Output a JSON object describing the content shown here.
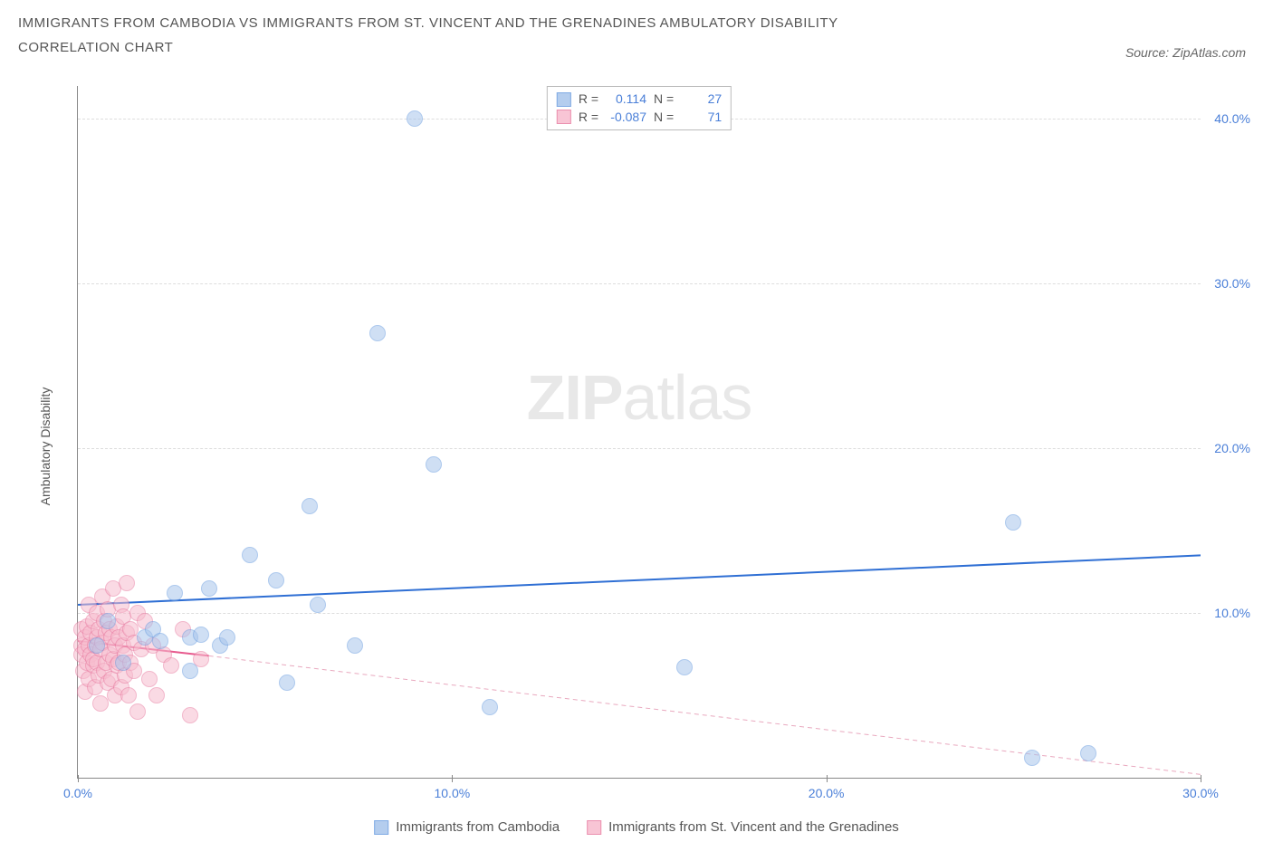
{
  "title_line1": "IMMIGRANTS FROM CAMBODIA VS IMMIGRANTS FROM ST. VINCENT AND THE GRENADINES AMBULATORY DISABILITY",
  "title_line2": "CORRELATION CHART",
  "source_prefix": "Source: ",
  "source_name": "ZipAtlas.com",
  "y_axis_label": "Ambulatory Disability",
  "watermark_bold": "ZIP",
  "watermark_light": "atlas",
  "chart": {
    "type": "scatter",
    "xlim": [
      0,
      30
    ],
    "ylim": [
      0,
      42
    ],
    "x_ticks": [
      0.0,
      10.0,
      20.0,
      30.0
    ],
    "x_tick_labels": [
      "0.0%",
      "10.0%",
      "20.0%",
      "30.0%"
    ],
    "y_ticks": [
      10.0,
      20.0,
      30.0,
      40.0
    ],
    "y_tick_labels": [
      "10.0%",
      "20.0%",
      "30.0%",
      "40.0%"
    ],
    "background_color": "#ffffff",
    "grid_color": "#dddddd",
    "axis_color": "#888888",
    "tick_label_color": "#4a7fd8",
    "series": [
      {
        "name": "Immigrants from Cambodia",
        "short_label": "cambodia",
        "fill_color": "#a8c5ec",
        "stroke_color": "#6b9de0",
        "fill_opacity": 0.55,
        "marker_radius": 9,
        "r_value": "0.114",
        "n_value": "27",
        "trend": {
          "x1": 0,
          "y1": 10.5,
          "x2": 30,
          "y2": 13.5,
          "color": "#2f6fd4",
          "width": 2,
          "dash": "none"
        },
        "trend_ext": null,
        "points": [
          [
            0.5,
            8.0
          ],
          [
            0.8,
            9.5
          ],
          [
            1.2,
            7.0
          ],
          [
            1.8,
            8.5
          ],
          [
            2.0,
            9.0
          ],
          [
            2.2,
            8.3
          ],
          [
            2.6,
            11.2
          ],
          [
            3.0,
            8.5
          ],
          [
            3.0,
            6.5
          ],
          [
            3.3,
            8.7
          ],
          [
            3.5,
            11.5
          ],
          [
            3.8,
            8.0
          ],
          [
            4.0,
            8.5
          ],
          [
            4.6,
            13.5
          ],
          [
            5.3,
            12.0
          ],
          [
            5.6,
            5.8
          ],
          [
            6.2,
            16.5
          ],
          [
            6.4,
            10.5
          ],
          [
            7.4,
            8.0
          ],
          [
            8.0,
            27.0
          ],
          [
            9.0,
            40.0
          ],
          [
            9.5,
            19.0
          ],
          [
            11.0,
            4.3
          ],
          [
            16.2,
            6.7
          ],
          [
            25.0,
            15.5
          ],
          [
            25.5,
            1.2
          ],
          [
            27.0,
            1.5
          ]
        ]
      },
      {
        "name": "Immigrants from St. Vincent and the Grenadines",
        "short_label": "stvincent",
        "fill_color": "#f7bcce",
        "stroke_color": "#e87da2",
        "fill_opacity": 0.55,
        "marker_radius": 9,
        "r_value": "-0.087",
        "n_value": "71",
        "trend": {
          "x1": 0,
          "y1": 8.3,
          "x2": 3.5,
          "y2": 7.4,
          "color": "#e75a8e",
          "width": 2,
          "dash": "none"
        },
        "trend_ext": {
          "x1": 3.5,
          "y1": 7.4,
          "x2": 30,
          "y2": 0.2,
          "color": "#e9a9bf",
          "width": 1,
          "dash": "5,4"
        },
        "points": [
          [
            0.1,
            8.0
          ],
          [
            0.1,
            7.5
          ],
          [
            0.1,
            9.0
          ],
          [
            0.15,
            6.5
          ],
          [
            0.2,
            7.8
          ],
          [
            0.2,
            8.5
          ],
          [
            0.2,
            5.2
          ],
          [
            0.25,
            9.2
          ],
          [
            0.25,
            7.0
          ],
          [
            0.3,
            8.0
          ],
          [
            0.3,
            6.0
          ],
          [
            0.3,
            10.5
          ],
          [
            0.35,
            7.5
          ],
          [
            0.35,
            8.8
          ],
          [
            0.4,
            6.8
          ],
          [
            0.4,
            9.5
          ],
          [
            0.4,
            7.2
          ],
          [
            0.45,
            8.0
          ],
          [
            0.45,
            5.5
          ],
          [
            0.5,
            10.0
          ],
          [
            0.5,
            7.0
          ],
          [
            0.5,
            8.5
          ],
          [
            0.55,
            6.2
          ],
          [
            0.55,
            9.0
          ],
          [
            0.6,
            7.8
          ],
          [
            0.6,
            4.5
          ],
          [
            0.65,
            8.2
          ],
          [
            0.65,
            11.0
          ],
          [
            0.7,
            6.5
          ],
          [
            0.7,
            9.5
          ],
          [
            0.75,
            7.0
          ],
          [
            0.75,
            8.8
          ],
          [
            0.8,
            5.8
          ],
          [
            0.8,
            10.2
          ],
          [
            0.85,
            7.5
          ],
          [
            0.85,
            9.0
          ],
          [
            0.9,
            6.0
          ],
          [
            0.9,
            8.5
          ],
          [
            0.95,
            7.2
          ],
          [
            0.95,
            11.5
          ],
          [
            1.0,
            8.0
          ],
          [
            1.0,
            5.0
          ],
          [
            1.05,
            9.2
          ],
          [
            1.05,
            6.8
          ],
          [
            1.1,
            8.5
          ],
          [
            1.1,
            7.0
          ],
          [
            1.15,
            10.5
          ],
          [
            1.15,
            5.5
          ],
          [
            1.2,
            8.0
          ],
          [
            1.2,
            9.8
          ],
          [
            1.25,
            6.2
          ],
          [
            1.25,
            7.5
          ],
          [
            1.3,
            8.8
          ],
          [
            1.3,
            11.8
          ],
          [
            1.35,
            5.0
          ],
          [
            1.4,
            9.0
          ],
          [
            1.4,
            7.0
          ],
          [
            1.5,
            8.2
          ],
          [
            1.5,
            6.5
          ],
          [
            1.6,
            10.0
          ],
          [
            1.6,
            4.0
          ],
          [
            1.7,
            7.8
          ],
          [
            1.8,
            9.5
          ],
          [
            1.9,
            6.0
          ],
          [
            2.0,
            8.0
          ],
          [
            2.1,
            5.0
          ],
          [
            2.3,
            7.5
          ],
          [
            2.5,
            6.8
          ],
          [
            2.8,
            9.0
          ],
          [
            3.0,
            3.8
          ],
          [
            3.3,
            7.2
          ]
        ]
      }
    ],
    "legend_stats": {
      "r_label": "R =",
      "n_label": "N ="
    }
  }
}
